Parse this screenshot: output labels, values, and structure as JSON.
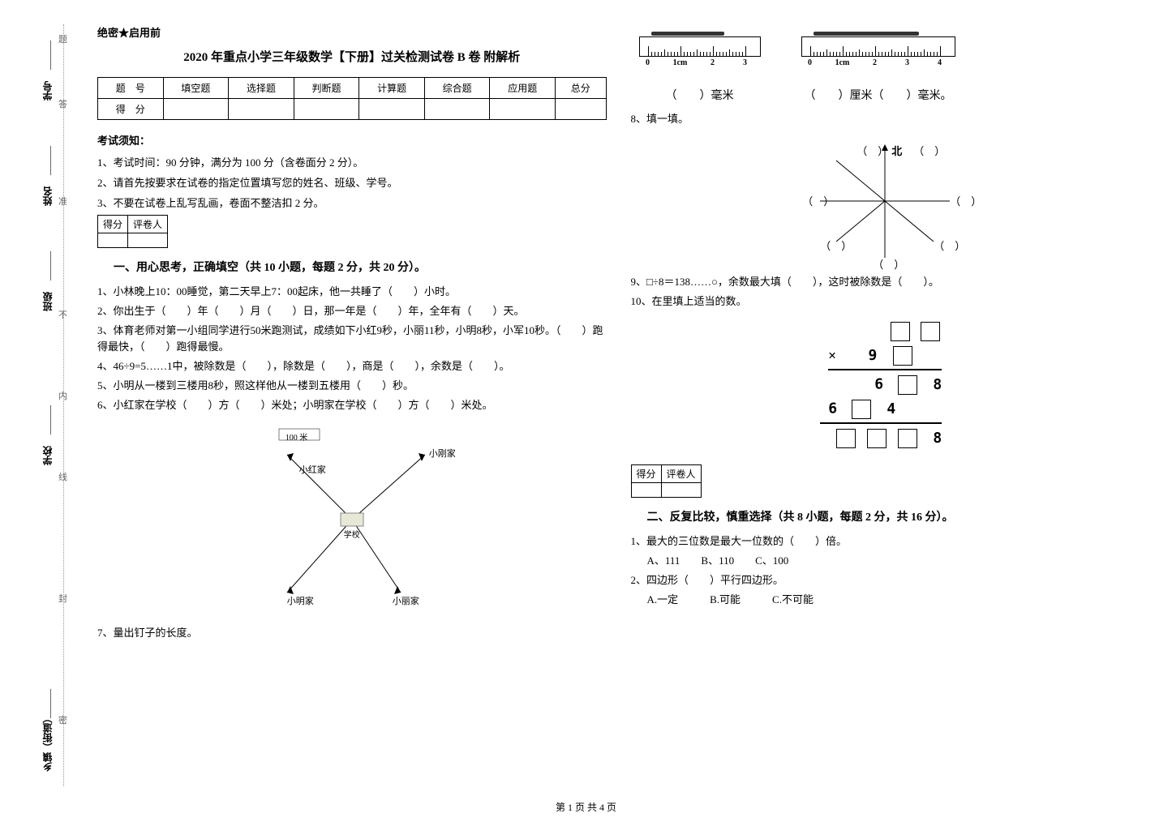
{
  "side_labels": {
    "township": "乡镇（街道）",
    "school": "学校",
    "class": "班级",
    "name": "姓名",
    "student_id": "学号"
  },
  "dotted_labels": {
    "seal": "密",
    "fold": "封",
    "line": "线",
    "inside": "内",
    "no": "不",
    "allow": "准",
    "answer": "答",
    "question": "题"
  },
  "header": {
    "secret": "绝密★启用前",
    "title": "2020 年重点小学三年级数学【下册】过关检测试卷 B 卷 附解析"
  },
  "score_table": {
    "row1": [
      "题　号",
      "填空题",
      "选择题",
      "判断题",
      "计算题",
      "综合题",
      "应用题",
      "总分"
    ],
    "row2": [
      "得　分",
      "",
      "",
      "",
      "",
      "",
      "",
      ""
    ]
  },
  "instructions": {
    "header": "考试须知：",
    "items": [
      "1、考试时间：90 分钟，满分为 100 分（含卷面分 2 分）。",
      "2、请首先按要求在试卷的指定位置填写您的姓名、班级、学号。",
      "3、不要在试卷上乱写乱画，卷面不整洁扣 2 分。"
    ]
  },
  "grade_box": {
    "score": "得分",
    "grader": "评卷人"
  },
  "section1": {
    "title": "一、用心思考，正确填空（共 10 小题，每题 2 分，共 20 分）。",
    "q1": "1、小林晚上10：00睡觉，第二天早上7：00起床，他一共睡了（　　）小时。",
    "q2": "2、你出生于（　　）年（　　）月（　　）日，那一年是（　　）年，全年有（　　）天。",
    "q3": "3、体育老师对第一小组同学进行50米跑测试，成绩如下小红9秒，小丽11秒，小明8秒，小军10秒。（　　）跑得最快，（　　）跑得最慢。",
    "q4": "4、46÷9=5……1中，被除数是（　　），除数是（　　），商是（　　），余数是（　　）。",
    "q5": "5、小明从一楼到三楼用8秒，照这样他从一楼到五楼用（　　）秒。",
    "q6": "6、小红家在学校（　　）方（　　）米处；小明家在学校（　　）方（　　）米处。",
    "q7": "7、量出钉子的长度。",
    "q8": "8、填一填。",
    "q9": "9、□÷8＝138……○，余数最大填（　　），这时被除数是（　　）。",
    "q10": "10、在里填上适当的数。"
  },
  "map": {
    "scale": "100 米",
    "hong": "小红家",
    "gang": "小刚家",
    "school": "学校",
    "ming": "小明家",
    "li": "小丽家"
  },
  "ruler1": {
    "labels": [
      "0",
      "1cm",
      "2",
      "3"
    ],
    "answer": "（　　）毫米"
  },
  "ruler2": {
    "labels": [
      "0",
      "1cm",
      "2",
      "3",
      "4"
    ],
    "answer": "（　　）厘米（　　）毫米。"
  },
  "compass": {
    "north": "北"
  },
  "section2": {
    "title": "二、反复比较，慎重选择（共 8 小题，每题 2 分，共 16 分）。",
    "q1": "1、最大的三位数是最大一位数的（　　）倍。",
    "q1_opts": "A、111　　B、110　　C、100",
    "q2": "2、四边形（　　）平行四边形。",
    "q2_opts": "A.一定　　　B.可能　　　C.不可能"
  },
  "footer": "第 1 页 共 4 页"
}
